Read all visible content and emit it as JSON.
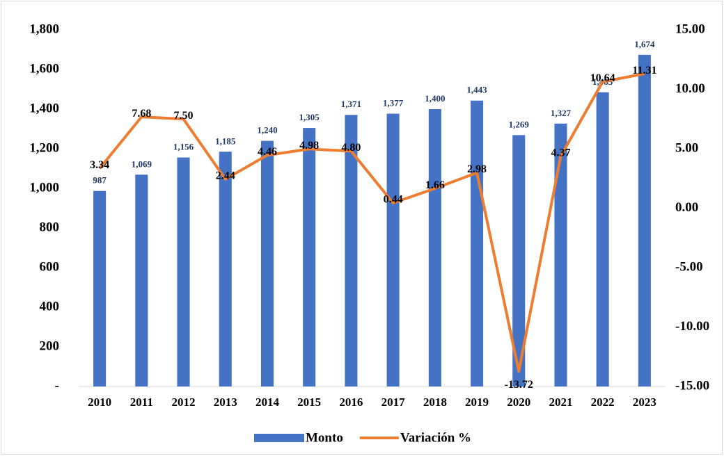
{
  "chart_data": {
    "type": "bar_line",
    "categories": [
      "2010",
      "2011",
      "2012",
      "2013",
      "2014",
      "2015",
      "2016",
      "2017",
      "2018",
      "2019",
      "2020",
      "2021",
      "2022",
      "2023"
    ],
    "series": [
      {
        "name": "Monto",
        "type": "bar",
        "color": "#4472c4",
        "label_color": "#1f3864",
        "values": [
          987,
          1069,
          1156,
          1185,
          1240,
          1305,
          1371,
          1377,
          1400,
          1443,
          1269,
          1327,
          1485,
          1674
        ],
        "value_labels": [
          "987",
          "1,069",
          "1,156",
          "1,185",
          "1,240",
          "1,305",
          "1,371",
          "1,377",
          "1,400",
          "1,443",
          "1,269",
          "1,327",
          "1,485",
          "1,674"
        ]
      },
      {
        "name": "Variación %",
        "type": "line",
        "axis": "y2",
        "color": "#ed7d31",
        "label_color": "#000000",
        "values": [
          3.34,
          7.68,
          7.5,
          2.44,
          4.46,
          4.98,
          4.8,
          0.44,
          1.66,
          2.98,
          -13.72,
          4.37,
          10.64,
          11.31
        ],
        "value_labels": [
          "3.34",
          "7.68",
          "7.50",
          "2.44",
          "4.46",
          "4.98",
          "4.80",
          "0.44",
          "1.66",
          "2.98",
          "-13.72",
          "4.37",
          "10.64",
          "11.31"
        ]
      }
    ],
    "ylim": [
      0,
      1800
    ],
    "yticks": [
      {
        "value": 0,
        "label": "-"
      },
      200,
      400,
      600,
      800,
      {
        "value": 1000,
        "label": "1,000"
      },
      {
        "value": 1200,
        "label": "1,200"
      },
      {
        "value": 1400,
        "label": "1,400"
      },
      {
        "value": 1600,
        "label": "1,600"
      },
      {
        "value": 1800,
        "label": "1,800"
      }
    ],
    "y2lim": [
      -15,
      15
    ],
    "y2ticks": [
      {
        "value": -15,
        "label": "-15.00"
      },
      {
        "value": -10,
        "label": "-10.00"
      },
      {
        "value": -5,
        "label": "-5.00"
      },
      {
        "value": 0,
        "label": "0.00"
      },
      {
        "value": 5,
        "label": "5.00"
      },
      {
        "value": 10,
        "label": "10.00"
      },
      {
        "value": 15,
        "label": "15.00"
      }
    ],
    "legend": "bottom"
  }
}
